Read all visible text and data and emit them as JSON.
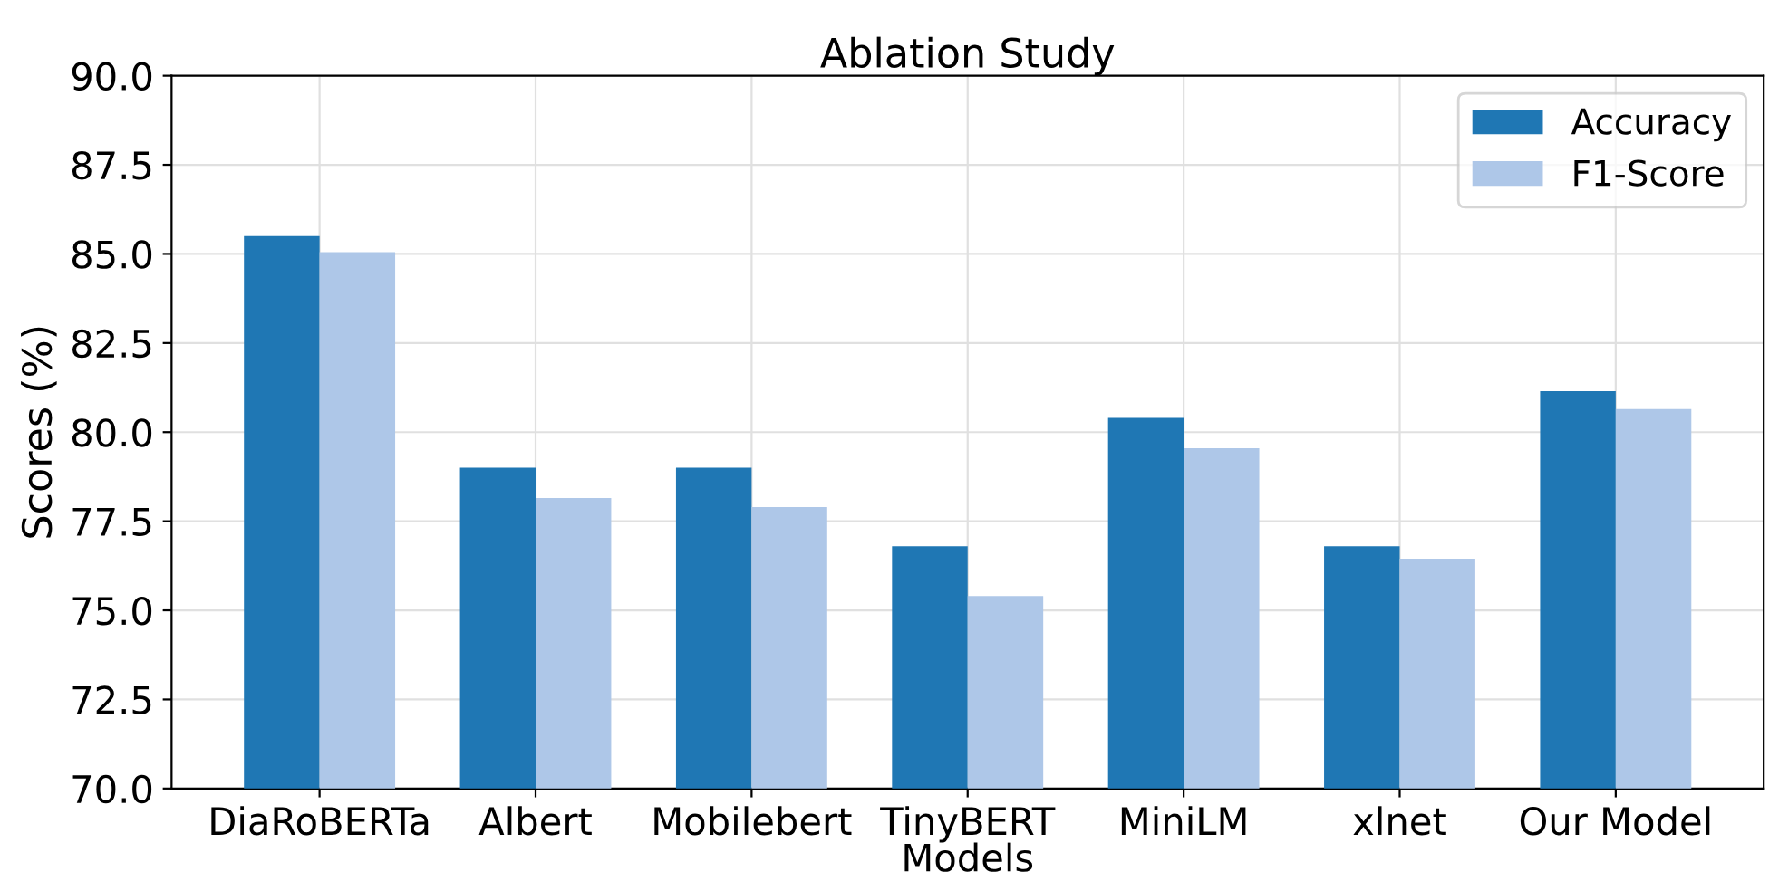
{
  "chart_data": {
    "type": "bar",
    "title": "Ablation Study",
    "xlabel": "Models",
    "ylabel": "Scores (%)",
    "categories": [
      "DiaRoBERTa",
      "Albert",
      "Mobilebert",
      "TinyBERT",
      "MiniLM",
      "xlnet",
      "Our Model"
    ],
    "series": [
      {
        "name": "Accuracy",
        "color": "#1f77b4",
        "values": [
          85.5,
          79.0,
          79.0,
          76.8,
          80.4,
          76.8,
          81.15
        ]
      },
      {
        "name": "F1-Score",
        "color": "#aec7e8",
        "values": [
          85.05,
          78.15,
          77.9,
          75.4,
          79.55,
          76.45,
          80.65
        ]
      }
    ],
    "ylim": [
      70,
      90
    ],
    "yticks": [
      {
        "value": 70,
        "label": "70.0"
      },
      {
        "value": 72.5,
        "label": "72.5"
      },
      {
        "value": 75,
        "label": "75.0"
      },
      {
        "value": 77.5,
        "label": "77.5"
      },
      {
        "value": 80,
        "label": "80.0"
      },
      {
        "value": 82.5,
        "label": "82.5"
      },
      {
        "value": 85,
        "label": "85.0"
      },
      {
        "value": 87.5,
        "label": "87.5"
      },
      {
        "value": 90,
        "label": "90.0"
      }
    ],
    "grid": true,
    "legend": "top right"
  }
}
